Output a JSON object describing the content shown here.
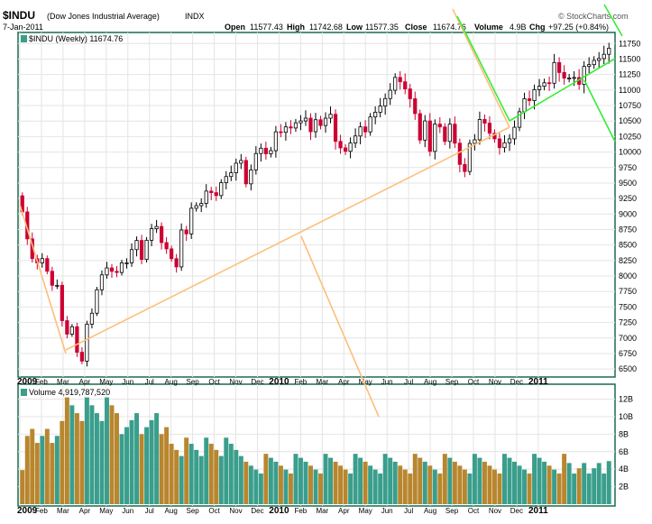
{
  "header": {
    "symbol": "$INDU",
    "full_name": "(Dow Jones Industrial Average)",
    "exchange": "INDX",
    "date": "7-Jan-2011",
    "open_label": "Open",
    "open_value": "11577.43",
    "high_label": "High",
    "high_value": "11742.68",
    "low_label": "Low",
    "low_value": "11577.35",
    "close_label": "Close",
    "close_value": "11674.76",
    "volume_label": "Volume",
    "volume_value": "4.9B",
    "chg_label": "Chg",
    "chg_value": "+97.25 (+0.84%)",
    "copyright": "© StockCharts.com"
  },
  "price_panel": {
    "legend": "$INDU (Weekly) 11674.76"
  },
  "volume_panel": {
    "legend": "Volume 4,919,787,520"
  },
  "colors": {
    "up_candle": "#000000",
    "down_candle": "#cc0033",
    "volume_up": "#3a9e8c",
    "volume_down": "#b8862e",
    "trendline_orange": "#fdbf7a",
    "trendline_green": "#33ee33",
    "panel_border": "#1a6b4e",
    "frame_bg": "#ffffff"
  },
  "chart_data": [
    {
      "type": "candlestick",
      "title": "$INDU (Weekly) 11674.76",
      "x_labels": [
        "2009",
        "Feb",
        "Mar",
        "Apr",
        "May",
        "Jun",
        "Jul",
        "Aug",
        "Sep",
        "Oct",
        "Nov",
        "Dec",
        "2010",
        "Feb",
        "Mar",
        "Apr",
        "May",
        "Jun",
        "Jul",
        "Aug",
        "Sep",
        "Oct",
        "Nov",
        "Dec",
        "2011"
      ],
      "y_ticks": [
        6500,
        6750,
        7000,
        7250,
        7500,
        7750,
        8000,
        8250,
        8500,
        8750,
        9000,
        9250,
        9500,
        9750,
        10000,
        10250,
        10500,
        10750,
        11000,
        11250,
        11500,
        11750
      ],
      "ylim": [
        6400,
        11900
      ],
      "grid": true,
      "close_values": [
        9034,
        8599,
        8281,
        8212,
        8281,
        8077,
        7850,
        7850,
        7280,
        7062,
        7182,
        6770,
        6627,
        7224,
        7400,
        7778,
        8018,
        8131,
        8076,
        8057,
        8212,
        8212,
        8426,
        8574,
        8268,
        8577,
        8763,
        8799,
        8539,
        8438,
        8280,
        8147,
        8743,
        8680,
        9093,
        9135,
        9171,
        9370,
        9345,
        9298,
        9505,
        9605,
        9665,
        9820,
        9864,
        9487,
        9712,
        9976,
        10062,
        9972,
        10023,
        10327,
        10318,
        10406,
        10388,
        10471,
        10502,
        10547,
        10328,
        10521,
        10428,
        10546,
        10609,
        10172,
        10067,
        10012,
        10145,
        10259,
        10406,
        10325,
        10566,
        10642,
        10742,
        10863,
        10997,
        11204,
        11134,
        11018,
        10860,
        10620,
        10193,
        10502,
        10011,
        10450,
        10405,
        10171,
        10450,
        10143,
        9800,
        9686,
        10139,
        10198,
        10526,
        10466,
        10303,
        10213,
        10071,
        10150,
        10213,
        10400,
        10650,
        10860,
        10829,
        11006,
        11062,
        11118,
        11110,
        11444,
        11283,
        11192,
        11193,
        11203,
        11092,
        11381,
        11410,
        11478,
        11509,
        11577,
        11675
      ]
    },
    {
      "type": "bar",
      "title": "Volume 4,919,787,520",
      "y_ticks": [
        "2B",
        "4B",
        "6B",
        "8B",
        "10B",
        "12B"
      ],
      "ylim": [
        0,
        13.5
      ],
      "grid": true
    }
  ]
}
